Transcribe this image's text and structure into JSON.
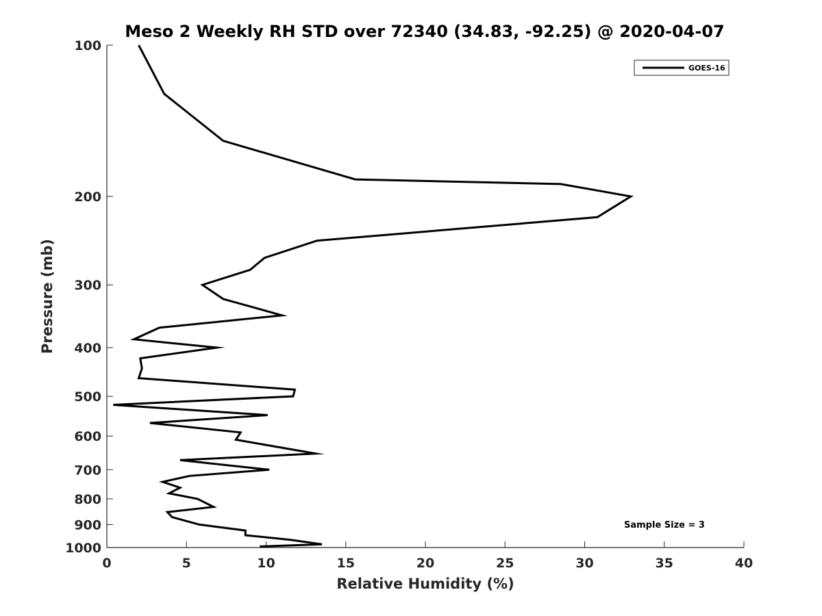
{
  "chart_data": {
    "type": "line",
    "title": "Meso 2 Weekly RH STD over 72340 (34.83, -92.25) @ 2020-04-07",
    "xlabel": "Relative Humidity (%)",
    "ylabel": "Pressure (mb)",
    "xlim": [
      0,
      40
    ],
    "ylim": [
      100,
      1000
    ],
    "y_scale": "log",
    "y_reversed": true,
    "x_ticks": [
      0,
      5,
      10,
      15,
      20,
      25,
      30,
      35,
      40
    ],
    "x_tick_labels": [
      "0",
      "5",
      "10",
      "15",
      "20",
      "25",
      "30",
      "35",
      "40"
    ],
    "y_ticks": [
      100,
      200,
      300,
      400,
      500,
      600,
      700,
      800,
      900,
      1000
    ],
    "y_tick_labels": [
      "100",
      "200",
      "300",
      "400",
      "500",
      "600",
      "700",
      "800",
      "900",
      "1000"
    ],
    "grid": false,
    "legend_position": "top-right",
    "series": [
      {
        "name": "GOES-16",
        "color": "#000000",
        "x": [
          2.0,
          3.6,
          7.3,
          15.6,
          28.5,
          32.9,
          30.8,
          13.2,
          9.9,
          9.0,
          6.0,
          7.3,
          11.0,
          3.3,
          1.7,
          6.9,
          2.1,
          2.2,
          2.0,
          11.8,
          11.7,
          0.4,
          10.1,
          2.7,
          8.4,
          8.1,
          13.1,
          4.6,
          10.2,
          5.2,
          3.5,
          4.6,
          3.9,
          5.7,
          6.7,
          3.8,
          4.1,
          5.8,
          8.7,
          8.7,
          11.5,
          13.5,
          9.6
        ],
        "y": [
          100,
          125,
          155,
          185,
          189,
          200,
          220,
          245,
          265,
          280,
          300,
          320,
          345,
          365,
          385,
          400,
          420,
          440,
          460,
          485,
          500,
          520,
          545,
          565,
          590,
          610,
          650,
          670,
          700,
          720,
          740,
          760,
          780,
          800,
          830,
          850,
          870,
          900,
          925,
          945,
          965,
          985,
          995
        ]
      }
    ],
    "annotations": [
      "Sample Size = 3"
    ]
  }
}
